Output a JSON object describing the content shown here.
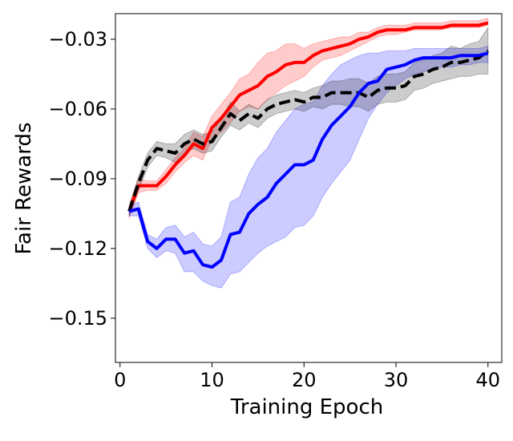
{
  "chart_data": {
    "type": "line",
    "title": "",
    "xlabel": "Training Epoch",
    "ylabel": "Fair Rewards",
    "xlim": [
      -0.5,
      41.5
    ],
    "ylim": [
      -0.169,
      -0.019
    ],
    "xticks": [
      0,
      10,
      20,
      30,
      40
    ],
    "xtick_labels": [
      "0",
      "10",
      "20",
      "30",
      "40"
    ],
    "yticks": [
      -0.03,
      -0.06,
      -0.09,
      -0.12,
      -0.15
    ],
    "ytick_labels": [
      "−0.03",
      "−0.06",
      "−0.09",
      "−0.12",
      "−0.15"
    ],
    "grid": false,
    "legend": false,
    "x": [
      1,
      2,
      3,
      4,
      5,
      6,
      7,
      8,
      9,
      10,
      11,
      12,
      13,
      14,
      15,
      16,
      17,
      18,
      19,
      20,
      21,
      22,
      23,
      24,
      25,
      26,
      27,
      28,
      29,
      30,
      31,
      32,
      33,
      34,
      35,
      36,
      37,
      38,
      39,
      40
    ],
    "series": [
      {
        "name": "red",
        "color": "#ff0000",
        "dash": "solid",
        "values": [
          -0.104,
          -0.093,
          -0.093,
          -0.093,
          -0.089,
          -0.084,
          -0.08,
          -0.075,
          -0.077,
          -0.068,
          -0.064,
          -0.059,
          -0.054,
          -0.052,
          -0.05,
          -0.046,
          -0.044,
          -0.041,
          -0.04,
          -0.04,
          -0.037,
          -0.035,
          -0.034,
          -0.033,
          -0.032,
          -0.03,
          -0.029,
          -0.027,
          -0.026,
          -0.026,
          -0.026,
          -0.025,
          -0.025,
          -0.025,
          -0.025,
          -0.024,
          -0.024,
          -0.024,
          -0.024,
          -0.023
        ],
        "lower": [
          -0.107,
          -0.096,
          -0.095,
          -0.095,
          -0.092,
          -0.087,
          -0.083,
          -0.08,
          -0.082,
          -0.073,
          -0.07,
          -0.066,
          -0.061,
          -0.059,
          -0.06,
          -0.056,
          -0.053,
          -0.05,
          -0.048,
          -0.046,
          -0.042,
          -0.039,
          -0.038,
          -0.037,
          -0.035,
          -0.033,
          -0.031,
          -0.029,
          -0.028,
          -0.028,
          -0.027,
          -0.026,
          -0.026,
          -0.026,
          -0.026,
          -0.025,
          -0.025,
          -0.025,
          -0.025,
          -0.024
        ],
        "upper": [
          -0.101,
          -0.09,
          -0.091,
          -0.091,
          -0.086,
          -0.081,
          -0.077,
          -0.07,
          -0.072,
          -0.063,
          -0.058,
          -0.053,
          -0.047,
          -0.045,
          -0.04,
          -0.036,
          -0.035,
          -0.032,
          -0.032,
          -0.034,
          -0.032,
          -0.031,
          -0.03,
          -0.029,
          -0.029,
          -0.027,
          -0.027,
          -0.025,
          -0.024,
          -0.024,
          -0.024,
          -0.023,
          -0.023,
          -0.023,
          -0.023,
          -0.022,
          -0.022,
          -0.022,
          -0.022,
          -0.021
        ]
      },
      {
        "name": "blue",
        "color": "#0000ff",
        "dash": "solid",
        "values": [
          -0.104,
          -0.103,
          -0.117,
          -0.12,
          -0.116,
          -0.116,
          -0.122,
          -0.121,
          -0.127,
          -0.128,
          -0.125,
          -0.114,
          -0.113,
          -0.105,
          -0.101,
          -0.098,
          -0.092,
          -0.088,
          -0.084,
          -0.084,
          -0.082,
          -0.073,
          -0.067,
          -0.063,
          -0.059,
          -0.053,
          -0.049,
          -0.048,
          -0.043,
          -0.042,
          -0.041,
          -0.039,
          -0.038,
          -0.038,
          -0.038,
          -0.038,
          -0.037,
          -0.037,
          -0.037,
          -0.036
        ],
        "lower": [
          -0.106,
          -0.106,
          -0.12,
          -0.124,
          -0.121,
          -0.122,
          -0.13,
          -0.13,
          -0.134,
          -0.136,
          -0.137,
          -0.131,
          -0.13,
          -0.126,
          -0.122,
          -0.119,
          -0.117,
          -0.115,
          -0.111,
          -0.11,
          -0.106,
          -0.098,
          -0.092,
          -0.087,
          -0.082,
          -0.073,
          -0.064,
          -0.058,
          -0.053,
          -0.05,
          -0.047,
          -0.045,
          -0.044,
          -0.043,
          -0.042,
          -0.042,
          -0.041,
          -0.041,
          -0.04,
          -0.04
        ],
        "upper": [
          -0.102,
          -0.1,
          -0.114,
          -0.116,
          -0.111,
          -0.11,
          -0.115,
          -0.113,
          -0.118,
          -0.119,
          -0.115,
          -0.1,
          -0.098,
          -0.088,
          -0.081,
          -0.077,
          -0.07,
          -0.065,
          -0.06,
          -0.058,
          -0.057,
          -0.05,
          -0.045,
          -0.041,
          -0.039,
          -0.037,
          -0.036,
          -0.036,
          -0.035,
          -0.035,
          -0.035,
          -0.034,
          -0.034,
          -0.034,
          -0.034,
          -0.034,
          -0.034,
          -0.034,
          -0.034,
          -0.033
        ]
      },
      {
        "name": "black-dashed",
        "color": "#000000",
        "dash": "dashed",
        "values": [
          -0.104,
          -0.092,
          -0.082,
          -0.077,
          -0.078,
          -0.079,
          -0.075,
          -0.073,
          -0.075,
          -0.074,
          -0.068,
          -0.062,
          -0.065,
          -0.062,
          -0.064,
          -0.06,
          -0.058,
          -0.057,
          -0.056,
          -0.057,
          -0.055,
          -0.055,
          -0.053,
          -0.053,
          -0.053,
          -0.053,
          -0.055,
          -0.052,
          -0.051,
          -0.051,
          -0.05,
          -0.046,
          -0.045,
          -0.043,
          -0.042,
          -0.04,
          -0.04,
          -0.039,
          -0.038,
          -0.035
        ],
        "lower": [
          -0.106,
          -0.095,
          -0.085,
          -0.08,
          -0.081,
          -0.083,
          -0.079,
          -0.077,
          -0.079,
          -0.078,
          -0.072,
          -0.067,
          -0.069,
          -0.066,
          -0.068,
          -0.064,
          -0.062,
          -0.061,
          -0.06,
          -0.061,
          -0.059,
          -0.06,
          -0.058,
          -0.058,
          -0.059,
          -0.059,
          -0.061,
          -0.058,
          -0.057,
          -0.057,
          -0.056,
          -0.052,
          -0.051,
          -0.049,
          -0.048,
          -0.047,
          -0.046,
          -0.046,
          -0.045,
          -0.045
        ],
        "upper": [
          -0.102,
          -0.089,
          -0.079,
          -0.074,
          -0.075,
          -0.075,
          -0.071,
          -0.069,
          -0.071,
          -0.07,
          -0.064,
          -0.057,
          -0.061,
          -0.058,
          -0.06,
          -0.056,
          -0.054,
          -0.053,
          -0.052,
          -0.053,
          -0.051,
          -0.05,
          -0.048,
          -0.048,
          -0.047,
          -0.047,
          -0.049,
          -0.046,
          -0.045,
          -0.045,
          -0.044,
          -0.04,
          -0.039,
          -0.037,
          -0.036,
          -0.033,
          -0.034,
          -0.032,
          -0.031,
          -0.025
        ]
      }
    ]
  }
}
